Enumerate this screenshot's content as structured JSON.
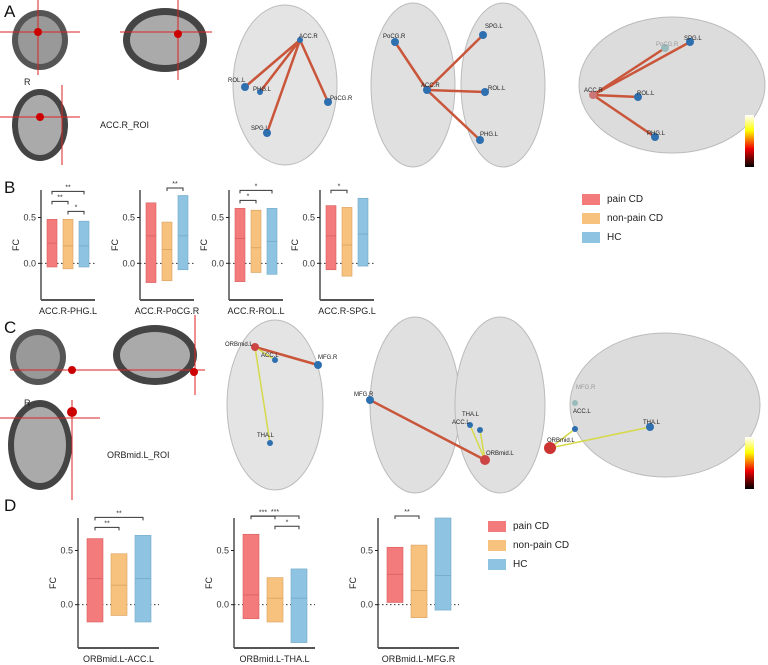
{
  "panels": {
    "A": "A",
    "B": "B",
    "C": "C",
    "D": "D"
  },
  "roi_A": "ACC.R_ROI",
  "roi_C": "ORBmid.L_ROI",
  "side_label": "R",
  "nodes_A": {
    "top": [
      "ACC.R",
      "ROL.L",
      "PHG.L",
      "PoCG.R",
      "SPG.L"
    ],
    "axial": [
      "PoCG.R",
      "SPG.L",
      "ACC.R",
      "ROL.L",
      "PHG.L"
    ],
    "lateral": [
      "PoCG.R",
      "SPG.L",
      "ACC.R",
      "ROL.L",
      "PHG.L"
    ]
  },
  "nodes_C": {
    "top": [
      "ORBmid.L",
      "ACC.L",
      "MFG.R",
      "THA.L"
    ],
    "axial": [
      "MFG.R",
      "ACC.L",
      "THA.L",
      "ORBmid.L"
    ],
    "lateral": [
      "MFG.R",
      "ACC.L",
      "THA.L",
      "ORBmid.L"
    ]
  },
  "legend": [
    {
      "label": "pain CD",
      "color": "#f47b7b"
    },
    {
      "label": "non-pain CD",
      "color": "#f7c17e"
    },
    {
      "label": "HC",
      "color": "#8fc3e2"
    }
  ],
  "chart_data": [
    {
      "type": "bar",
      "subtype": "floating-range",
      "title": "",
      "xlabel": "ACC.R-PHG.L",
      "ylabel": "FC",
      "ylim": [
        -0.4,
        0.8
      ],
      "yticks": [
        "0.5",
        "0.0"
      ],
      "series": [
        {
          "name": "pain CD",
          "min": -0.04,
          "median": 0.22,
          "max": 0.48
        },
        {
          "name": "non-pain CD",
          "min": -0.06,
          "median": 0.19,
          "max": 0.48
        },
        {
          "name": "HC",
          "min": -0.04,
          "median": 0.19,
          "max": 0.46
        }
      ],
      "significance": [
        {
          "from": 0,
          "to": 2,
          "label": "**"
        },
        {
          "from": 0,
          "to": 1,
          "label": "**"
        },
        {
          "from": 1,
          "to": 2,
          "label": "*"
        }
      ]
    },
    {
      "type": "bar",
      "subtype": "floating-range",
      "title": "",
      "xlabel": "ACC.R-PoCG.R",
      "ylabel": "FC",
      "ylim": [
        -0.4,
        0.8
      ],
      "yticks": [
        "0.5",
        "0.0"
      ],
      "series": [
        {
          "name": "pain CD",
          "min": -0.21,
          "median": 0.3,
          "max": 0.66
        },
        {
          "name": "non-pain CD",
          "min": -0.19,
          "median": 0.15,
          "max": 0.45
        },
        {
          "name": "HC",
          "min": -0.07,
          "median": 0.3,
          "max": 0.74
        }
      ],
      "significance": [
        {
          "from": 1,
          "to": 2,
          "label": "**"
        }
      ]
    },
    {
      "type": "bar",
      "subtype": "floating-range",
      "title": "",
      "xlabel": "ACC.R-ROL.L",
      "ylabel": "FC",
      "ylim": [
        -0.4,
        0.8
      ],
      "yticks": [
        "0.5",
        "0.0"
      ],
      "series": [
        {
          "name": "pain CD",
          "min": -0.2,
          "median": 0.27,
          "max": 0.6
        },
        {
          "name": "non-pain CD",
          "min": -0.1,
          "median": 0.17,
          "max": 0.58
        },
        {
          "name": "HC",
          "min": -0.12,
          "median": 0.24,
          "max": 0.6
        }
      ],
      "significance": [
        {
          "from": 0,
          "to": 2,
          "label": "*"
        },
        {
          "from": 0,
          "to": 1,
          "label": "*"
        }
      ]
    },
    {
      "type": "bar",
      "subtype": "floating-range",
      "title": "",
      "xlabel": "ACC.R-SPG.L",
      "ylabel": "FC",
      "ylim": [
        -0.4,
        0.8
      ],
      "yticks": [
        "0.5",
        "0.0"
      ],
      "series": [
        {
          "name": "pain CD",
          "min": -0.07,
          "median": 0.3,
          "max": 0.63
        },
        {
          "name": "non-pain CD",
          "min": -0.14,
          "median": 0.2,
          "max": 0.61
        },
        {
          "name": "HC",
          "min": -0.03,
          "median": 0.32,
          "max": 0.71
        }
      ],
      "significance": [
        {
          "from": 0,
          "to": 1,
          "label": "*"
        }
      ]
    },
    {
      "type": "bar",
      "subtype": "floating-range",
      "title": "",
      "xlabel": "ORBmid.L-ACC.L",
      "ylabel": "FC",
      "ylim": [
        -0.4,
        0.8
      ],
      "yticks": [
        "0.5",
        "0.0"
      ],
      "series": [
        {
          "name": "pain CD",
          "min": -0.16,
          "median": 0.24,
          "max": 0.61
        },
        {
          "name": "non-pain CD",
          "min": -0.1,
          "median": 0.18,
          "max": 0.47
        },
        {
          "name": "HC",
          "min": -0.16,
          "median": 0.24,
          "max": 0.64
        }
      ],
      "significance": [
        {
          "from": 0,
          "to": 2,
          "label": "**"
        },
        {
          "from": 0,
          "to": 1,
          "label": "**"
        }
      ]
    },
    {
      "type": "bar",
      "subtype": "floating-range",
      "title": "",
      "xlabel": "ORBmid.L-THA.L",
      "ylabel": "FC",
      "ylim": [
        -0.4,
        0.8
      ],
      "yticks": [
        "0.5",
        "0.0"
      ],
      "series": [
        {
          "name": "pain CD",
          "min": -0.13,
          "median": 0.09,
          "max": 0.65
        },
        {
          "name": "non-pain CD",
          "min": -0.16,
          "median": 0.06,
          "max": 0.25
        },
        {
          "name": "HC",
          "min": -0.35,
          "median": 0.06,
          "max": 0.33
        }
      ],
      "significance": [
        {
          "from": 0,
          "to": 2,
          "label": "***"
        },
        {
          "from": 0,
          "to": 1,
          "label": "***"
        },
        {
          "from": 1,
          "to": 2,
          "label": "*"
        }
      ]
    },
    {
      "type": "bar",
      "subtype": "floating-range",
      "title": "",
      "xlabel": "ORBmid.L-MFG.R",
      "ylabel": "FC",
      "ylim": [
        -0.4,
        0.8
      ],
      "yticks": [
        "0.5",
        "0.0"
      ],
      "series": [
        {
          "name": "pain CD",
          "min": 0.02,
          "median": 0.28,
          "max": 0.53
        },
        {
          "name": "non-pain CD",
          "min": -0.12,
          "median": 0.13,
          "max": 0.55
        },
        {
          "name": "HC",
          "min": -0.05,
          "median": 0.27,
          "max": 0.8
        }
      ],
      "significance": [
        {
          "from": 0,
          "to": 1,
          "label": "**"
        }
      ]
    }
  ]
}
